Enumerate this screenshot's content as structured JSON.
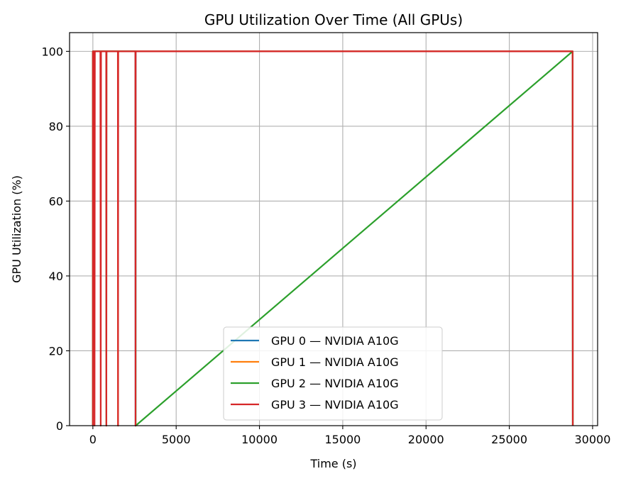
{
  "chart_data": {
    "type": "line",
    "title": "GPU Utilization Over Time (All GPUs)",
    "xlabel": "Time (s)",
    "ylabel": "GPU Utilization (%)",
    "xlim": [
      -1400,
      30300
    ],
    "ylim": [
      0,
      105
    ],
    "xticks": [
      0,
      5000,
      10000,
      15000,
      20000,
      25000,
      30000
    ],
    "yticks": [
      0,
      20,
      40,
      60,
      80,
      100
    ],
    "grid": true,
    "legend_position": "lower center",
    "series": [
      {
        "name": "GPU 0 — NVIDIA A10G",
        "color": "#1f77b4",
        "x": [
          0,
          0,
          2550,
          2560,
          2570,
          28800,
          28810
        ],
        "y": [
          0,
          100,
          100,
          0,
          100,
          100,
          0
        ]
      },
      {
        "name": "GPU 1 — NVIDIA A10G",
        "color": "#ff7f0e",
        "x": [
          0,
          0,
          1500,
          1510,
          1520,
          28800,
          28810
        ],
        "y": [
          0,
          100,
          100,
          0,
          100,
          100,
          0
        ]
      },
      {
        "name": "GPU 2 — NVIDIA A10G",
        "color": "#2ca02c",
        "x": [
          0,
          0,
          800,
          810,
          820,
          2560,
          2570,
          28800,
          28810
        ],
        "y": [
          0,
          100,
          100,
          0,
          100,
          100,
          0,
          100,
          0
        ]
      },
      {
        "name": "GPU 3 — NVIDIA A10G",
        "color": "#d62728",
        "x": [
          0,
          0,
          80,
          100,
          120,
          450,
          470,
          490,
          800,
          810,
          820,
          1500,
          1510,
          1520,
          2550,
          2560,
          2570,
          28800,
          28810
        ],
        "y": [
          0,
          100,
          100,
          0,
          100,
          100,
          0,
          100,
          100,
          0,
          100,
          100,
          0,
          100,
          100,
          0,
          100,
          100,
          0
        ]
      }
    ]
  }
}
